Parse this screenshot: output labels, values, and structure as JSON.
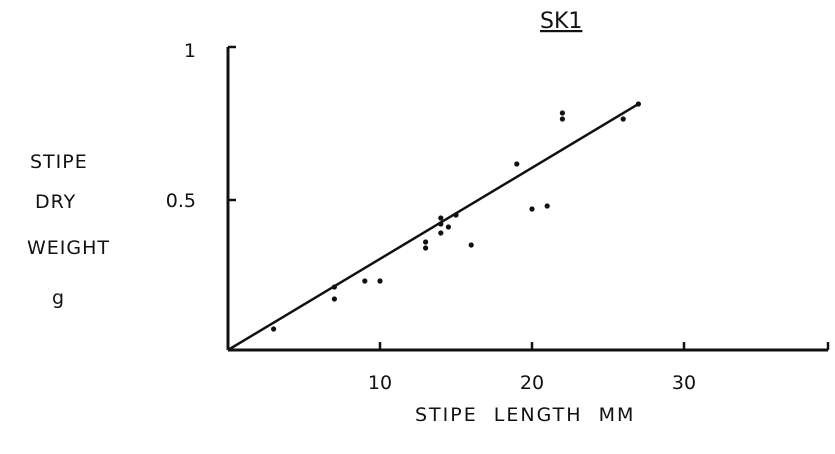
{
  "chart_data": {
    "type": "scatter",
    "title": "SK1",
    "xlabel": "STIPE  LENGTH  MM",
    "ylabel_lines": [
      "STIPE",
      "DRY",
      "WEIGHT",
      "g"
    ],
    "xlim": [
      0,
      40
    ],
    "ylim": [
      0,
      1
    ],
    "xticks": [
      10,
      20,
      30
    ],
    "xtick_labels": [
      "10",
      "20",
      "30"
    ],
    "yticks": [
      0.5,
      1
    ],
    "ytick_labels": [
      "0.5",
      "1"
    ],
    "grid": false,
    "legend": "none",
    "series": [
      {
        "points": [
          [
            3,
            0.07
          ],
          [
            7,
            0.21
          ],
          [
            7,
            0.17
          ],
          [
            9,
            0.23
          ],
          [
            10,
            0.23
          ],
          [
            13,
            0.36
          ],
          [
            13,
            0.34
          ],
          [
            14,
            0.44
          ],
          [
            14,
            0.42
          ],
          [
            14,
            0.39
          ],
          [
            14.5,
            0.41
          ],
          [
            15,
            0.45
          ],
          [
            16,
            0.35
          ],
          [
            19,
            0.62
          ],
          [
            20,
            0.47
          ],
          [
            21,
            0.48
          ],
          [
            22,
            0.79
          ],
          [
            22,
            0.77
          ],
          [
            26,
            0.77
          ],
          [
            27,
            0.82
          ]
        ]
      }
    ],
    "fit_line": {
      "x": [
        0,
        27
      ],
      "y": [
        0,
        0.82
      ]
    }
  }
}
